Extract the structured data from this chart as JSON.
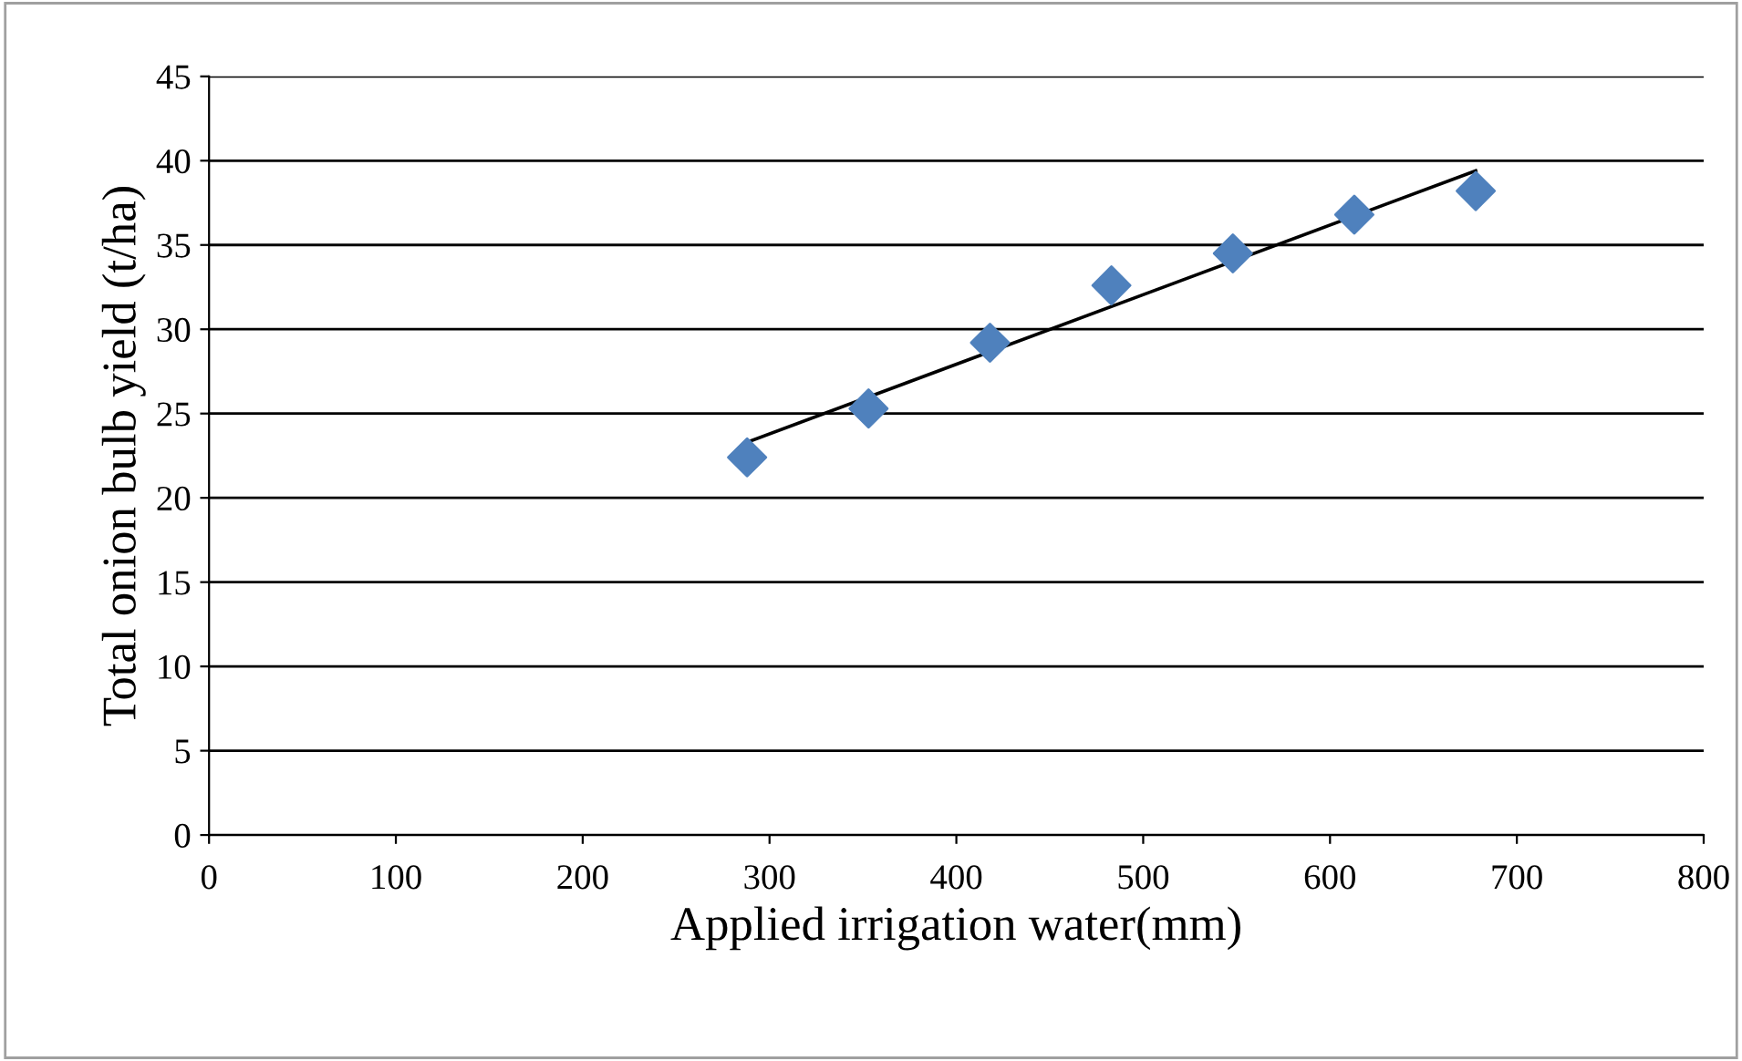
{
  "chart_data": {
    "type": "scatter",
    "xlabel": "Applied irrigation water(mm)",
    "ylabel": "Total onion bulb yield (t/ha)",
    "xlim": [
      0,
      800
    ],
    "xticks": [
      0,
      100,
      200,
      300,
      400,
      500,
      600,
      700,
      800
    ],
    "ylim": [
      0,
      45
    ],
    "yticks": [
      0,
      5,
      10,
      15,
      20,
      25,
      30,
      35,
      40,
      45
    ],
    "grid": "y",
    "legend": false,
    "marker": "diamond",
    "series": [
      {
        "color": "#4f81bd",
        "x": [
          288,
          353,
          418,
          483,
          548,
          613,
          678
        ],
        "values": [
          22.4,
          25.3,
          29.2,
          32.6,
          34.5,
          36.8,
          38.2
        ]
      },
      {
        "type": "line",
        "color": "#000000",
        "x": [
          288,
          678
        ],
        "values": [
          23.3,
          39.4
        ],
        "marker": "none",
        "line_style": "solid"
      }
    ]
  }
}
